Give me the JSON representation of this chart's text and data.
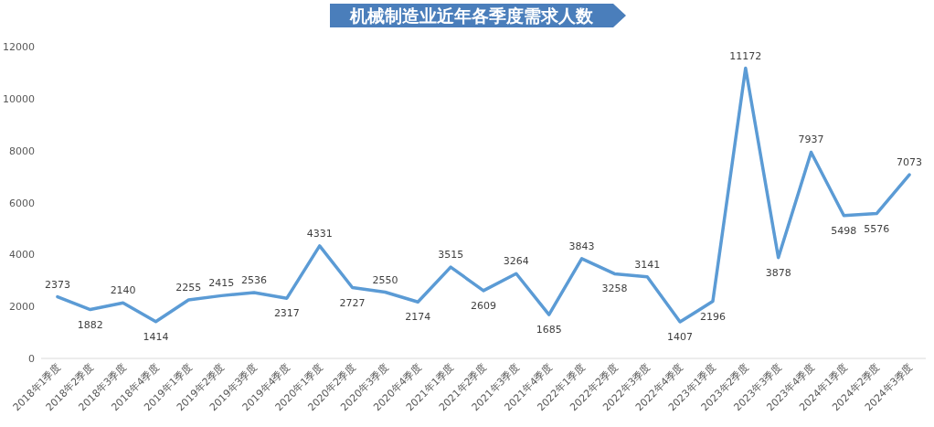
{
  "chart_data": {
    "type": "line",
    "title": "机械制造业近年各季度需求人数",
    "categories": [
      "2018年1季度",
      "2018年2季度",
      "2018年3季度",
      "2018年4季度",
      "2019年1季度",
      "2019年2季度",
      "2019年3季度",
      "2019年4季度",
      "2020年1季度",
      "2020年2季度",
      "2020年3季度",
      "2020年4季度",
      "2021年1季度",
      "2021年2季度",
      "2021年3季度",
      "2021年4季度",
      "2022年1季度",
      "2022年2季度",
      "2022年3季度",
      "2022年4季度",
      "2023年1季度",
      "2023年2季度",
      "2023年3季度",
      "2023年4季度",
      "2024年1季度",
      "2024年2季度",
      "2024年3季度"
    ],
    "series": [
      {
        "color": "#5b9bd5",
        "values": [
          2373,
          1882,
          2140,
          1414,
          2255,
          2415,
          2536,
          2317,
          4331,
          2727,
          2550,
          2174,
          3515,
          2609,
          3264,
          1685,
          3843,
          3258,
          3141,
          1407,
          2196,
          11172,
          3878,
          7937,
          5498,
          5576,
          7073
        ]
      }
    ],
    "ylim": [
      0,
      12000
    ],
    "yticks": [
      0,
      2000,
      4000,
      6000,
      8000,
      10000,
      12000
    ],
    "grid": false,
    "data_labels": true,
    "marker": "none",
    "line_style": "solid"
  }
}
